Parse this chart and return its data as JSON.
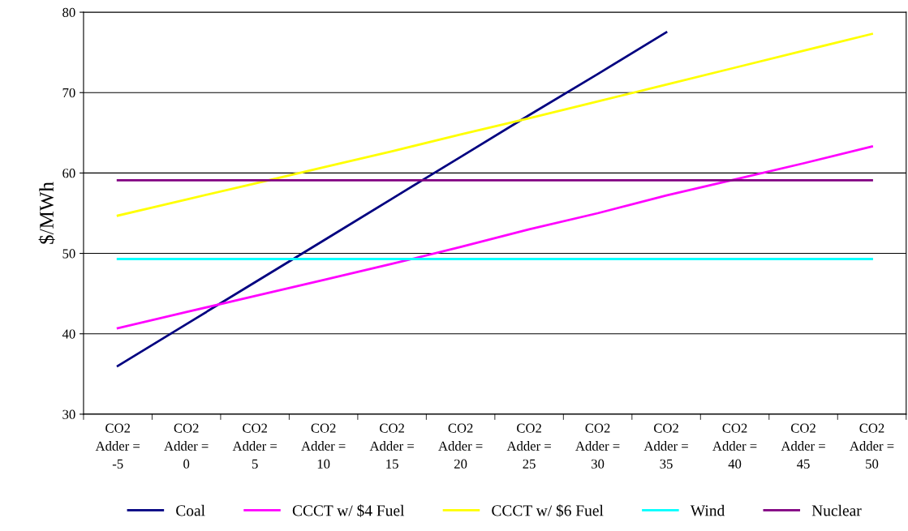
{
  "chart_data": {
    "type": "line",
    "ylabel": "$/MWh",
    "categories": [
      "CO2\nAdder =\n-5",
      "CO2\nAdder =\n0",
      "CO2\nAdder =\n5",
      "CO2\nAdder =\n10",
      "CO2\nAdder =\n15",
      "CO2\nAdder =\n20",
      "CO2\nAdder =\n25",
      "CO2\nAdder =\n30",
      "CO2\nAdder =\n35",
      "CO2\nAdder =\n40",
      "CO2\nAdder =\n45",
      "CO2\nAdder =\n50"
    ],
    "series": [
      {
        "name": "Coal",
        "color": "#000080",
        "values": [
          36,
          41.2,
          46.4,
          51.6,
          56.8,
          62,
          67.2,
          72.3,
          77.5,
          null,
          null,
          null
        ]
      },
      {
        "name": "CCCT w/ $4 Fuel",
        "color": "#ff00ff",
        "values": [
          40.7,
          42.7,
          44.7,
          46.7,
          48.7,
          50.8,
          53,
          55,
          57.2,
          59.2,
          61.2,
          63.3
        ]
      },
      {
        "name": "CCCT w/ $6 Fuel",
        "color": "#ffff00",
        "values": [
          54.7,
          56.7,
          58.7,
          60.7,
          62.7,
          64.8,
          66.8,
          68.9,
          71,
          73.1,
          75.2,
          77.3
        ]
      },
      {
        "name": "Wind",
        "color": "#00ffff",
        "values": [
          49.3,
          49.3,
          49.3,
          49.3,
          49.3,
          49.3,
          49.3,
          49.3,
          49.3,
          49.3,
          49.3,
          49.3
        ]
      },
      {
        "name": "Nuclear",
        "color": "#800080",
        "values": [
          59.1,
          59.1,
          59.1,
          59.1,
          59.1,
          59.1,
          59.1,
          59.1,
          59.1,
          59.1,
          59.1,
          59.1
        ]
      }
    ],
    "ylim": [
      30,
      80
    ],
    "yticks": [
      30,
      40,
      50,
      60,
      70,
      80
    ],
    "grid": "y",
    "legend": "bottom",
    "marker": "none",
    "line_style": "solid"
  }
}
